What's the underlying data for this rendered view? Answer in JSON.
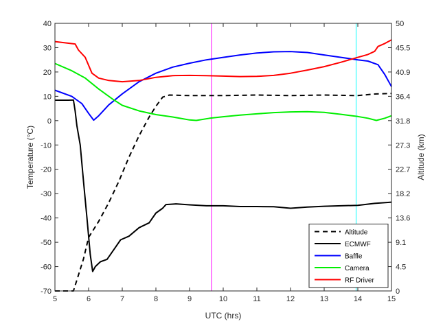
{
  "chart_data": {
    "type": "line",
    "xlabel": "UTC (hrs)",
    "ylabel_left": "Temperature (°C)",
    "ylabel_right": "Altitude (km)",
    "xlim": [
      5,
      15
    ],
    "ylim_left": [
      -70,
      40
    ],
    "ylim_right": [
      0,
      50
    ],
    "x_ticks": [
      "5",
      "6",
      "7",
      "8",
      "9",
      "10",
      "11",
      "12",
      "13",
      "14",
      "15"
    ],
    "y_left_ticks": [
      "40",
      "30",
      "20",
      "10",
      "0",
      "-10",
      "-20",
      "-30",
      "-40",
      "-50",
      "-60",
      "-70"
    ],
    "y_right_ticks": [
      "50",
      "45.5",
      "40.9",
      "36.4",
      "31.8",
      "27.3",
      "22.7",
      "18.2",
      "13.6",
      "9.1",
      "4.5",
      "0"
    ],
    "grid": false,
    "legend_position": "bottom-right",
    "vertical_lines": [
      {
        "x": 9.65,
        "color": "#ff33ff"
      },
      {
        "x": 13.95,
        "color": "#33ffff"
      }
    ],
    "series": [
      {
        "name": "Altitude",
        "axis": "right",
        "color": "#000000",
        "style": "dashed",
        "points": [
          [
            5.0,
            0
          ],
          [
            5.55,
            0
          ],
          [
            5.7,
            3
          ],
          [
            5.85,
            6
          ],
          [
            6.0,
            10
          ],
          [
            6.3,
            13
          ],
          [
            6.6,
            16.5
          ],
          [
            6.9,
            20.5
          ],
          [
            7.2,
            25
          ],
          [
            7.5,
            29
          ],
          [
            7.8,
            32.5
          ],
          [
            8.0,
            34.5
          ],
          [
            8.2,
            36.2
          ],
          [
            8.4,
            36.6
          ],
          [
            9.0,
            36.5
          ],
          [
            10.0,
            36.5
          ],
          [
            11.0,
            36.6
          ],
          [
            12.0,
            36.5
          ],
          [
            13.0,
            36.6
          ],
          [
            14.0,
            36.5
          ],
          [
            14.5,
            36.8
          ],
          [
            15.0,
            36.9
          ]
        ]
      },
      {
        "name": "ECMWF",
        "axis": "left",
        "color": "#000000",
        "style": "solid",
        "points": [
          [
            5.0,
            8.4
          ],
          [
            5.4,
            8.4
          ],
          [
            5.55,
            8.5
          ],
          [
            5.6,
            4
          ],
          [
            5.65,
            -2
          ],
          [
            5.75,
            -10
          ],
          [
            5.85,
            -25
          ],
          [
            5.95,
            -40
          ],
          [
            6.05,
            -55
          ],
          [
            6.12,
            -62
          ],
          [
            6.2,
            -60
          ],
          [
            6.35,
            -58
          ],
          [
            6.55,
            -57
          ],
          [
            6.75,
            -53
          ],
          [
            6.95,
            -49
          ],
          [
            7.2,
            -47.5
          ],
          [
            7.5,
            -44
          ],
          [
            7.8,
            -42
          ],
          [
            8.0,
            -38
          ],
          [
            8.2,
            -36
          ],
          [
            8.3,
            -34.5
          ],
          [
            8.6,
            -34.2
          ],
          [
            9.0,
            -34.6
          ],
          [
            9.5,
            -35
          ],
          [
            10.0,
            -35
          ],
          [
            10.5,
            -35.3
          ],
          [
            11.0,
            -35.3
          ],
          [
            11.5,
            -35.4
          ],
          [
            12.0,
            -36
          ],
          [
            12.5,
            -35.5
          ],
          [
            13.0,
            -35.2
          ],
          [
            13.5,
            -35
          ],
          [
            14.0,
            -34.8
          ],
          [
            14.5,
            -34
          ],
          [
            15.0,
            -33.5
          ]
        ]
      },
      {
        "name": "Baffle",
        "axis": "left",
        "color": "#0000ff",
        "style": "solid",
        "points": [
          [
            5.0,
            12.5
          ],
          [
            5.5,
            10
          ],
          [
            5.8,
            7
          ],
          [
            6.0,
            3
          ],
          [
            6.15,
            0.2
          ],
          [
            6.3,
            2
          ],
          [
            6.6,
            6.5
          ],
          [
            7.0,
            11
          ],
          [
            7.5,
            16
          ],
          [
            8.0,
            19.5
          ],
          [
            8.5,
            22
          ],
          [
            9.0,
            23.6
          ],
          [
            9.5,
            25
          ],
          [
            10.0,
            26
          ],
          [
            10.5,
            27
          ],
          [
            11.0,
            27.8
          ],
          [
            11.5,
            28.3
          ],
          [
            12.0,
            28.4
          ],
          [
            12.5,
            28
          ],
          [
            13.0,
            27
          ],
          [
            13.5,
            26
          ],
          [
            14.0,
            25
          ],
          [
            14.3,
            24.5
          ],
          [
            14.6,
            23
          ],
          [
            14.8,
            19
          ],
          [
            15.0,
            14
          ]
        ]
      },
      {
        "name": "Camera",
        "axis": "left",
        "color": "#00ee00",
        "style": "solid",
        "points": [
          [
            5.0,
            23.5
          ],
          [
            5.5,
            20.5
          ],
          [
            5.9,
            17.5
          ],
          [
            6.3,
            13
          ],
          [
            6.7,
            9
          ],
          [
            7.0,
            6.3
          ],
          [
            7.5,
            4
          ],
          [
            8.0,
            2.5
          ],
          [
            8.5,
            1.5
          ],
          [
            9.0,
            0.3
          ],
          [
            9.2,
            0.1
          ],
          [
            9.6,
            1
          ],
          [
            10.0,
            1.6
          ],
          [
            10.5,
            2.3
          ],
          [
            11.0,
            2.8
          ],
          [
            11.5,
            3.3
          ],
          [
            12.0,
            3.6
          ],
          [
            12.5,
            3.7
          ],
          [
            13.0,
            3.4
          ],
          [
            13.5,
            2.6
          ],
          [
            14.0,
            1.7
          ],
          [
            14.3,
            1
          ],
          [
            14.55,
            0.1
          ],
          [
            14.8,
            1
          ],
          [
            15.0,
            2
          ]
        ]
      },
      {
        "name": "RF Driver",
        "axis": "left",
        "color": "#ff0000",
        "style": "solid",
        "points": [
          [
            5.0,
            32.5
          ],
          [
            5.3,
            32
          ],
          [
            5.6,
            31.5
          ],
          [
            5.7,
            29
          ],
          [
            5.9,
            26
          ],
          [
            6.1,
            19.5
          ],
          [
            6.3,
            17.5
          ],
          [
            6.6,
            16.5
          ],
          [
            7.0,
            16
          ],
          [
            7.5,
            16.5
          ],
          [
            8.0,
            17.8
          ],
          [
            8.5,
            18.5
          ],
          [
            9.0,
            18.6
          ],
          [
            9.5,
            18.5
          ],
          [
            10.0,
            18.3
          ],
          [
            10.5,
            18.1
          ],
          [
            11.0,
            18.2
          ],
          [
            11.5,
            18.6
          ],
          [
            12.0,
            19.5
          ],
          [
            12.5,
            20.8
          ],
          [
            13.0,
            22.2
          ],
          [
            13.5,
            24
          ],
          [
            14.0,
            26
          ],
          [
            14.3,
            27.2
          ],
          [
            14.5,
            28.5
          ],
          [
            14.6,
            30.5
          ],
          [
            14.8,
            31.7
          ],
          [
            15.0,
            33.2
          ]
        ]
      }
    ]
  }
}
